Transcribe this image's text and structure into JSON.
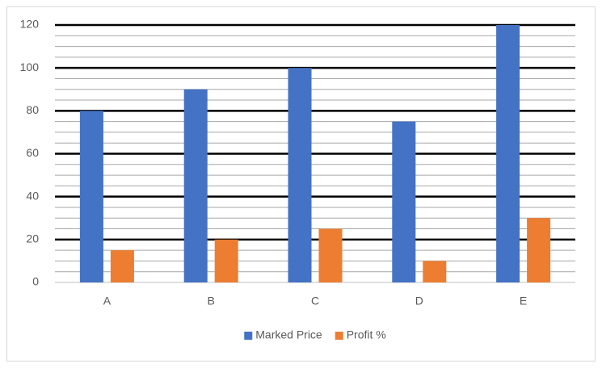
{
  "chart_data": {
    "type": "bar",
    "categories": [
      "A",
      "B",
      "C",
      "D",
      "E"
    ],
    "series": [
      {
        "name": "Marked Price",
        "color": "#4472c4",
        "values": [
          80,
          90,
          100,
          75,
          120
        ]
      },
      {
        "name": "Profit %",
        "color": "#ed7d31",
        "values": [
          15,
          20,
          25,
          10,
          30
        ]
      }
    ],
    "ylim": [
      0,
      120
    ],
    "yticks": [
      0,
      20,
      40,
      60,
      80,
      100,
      120
    ],
    "grid": true,
    "minor_grid": true,
    "legend": "bottom"
  }
}
